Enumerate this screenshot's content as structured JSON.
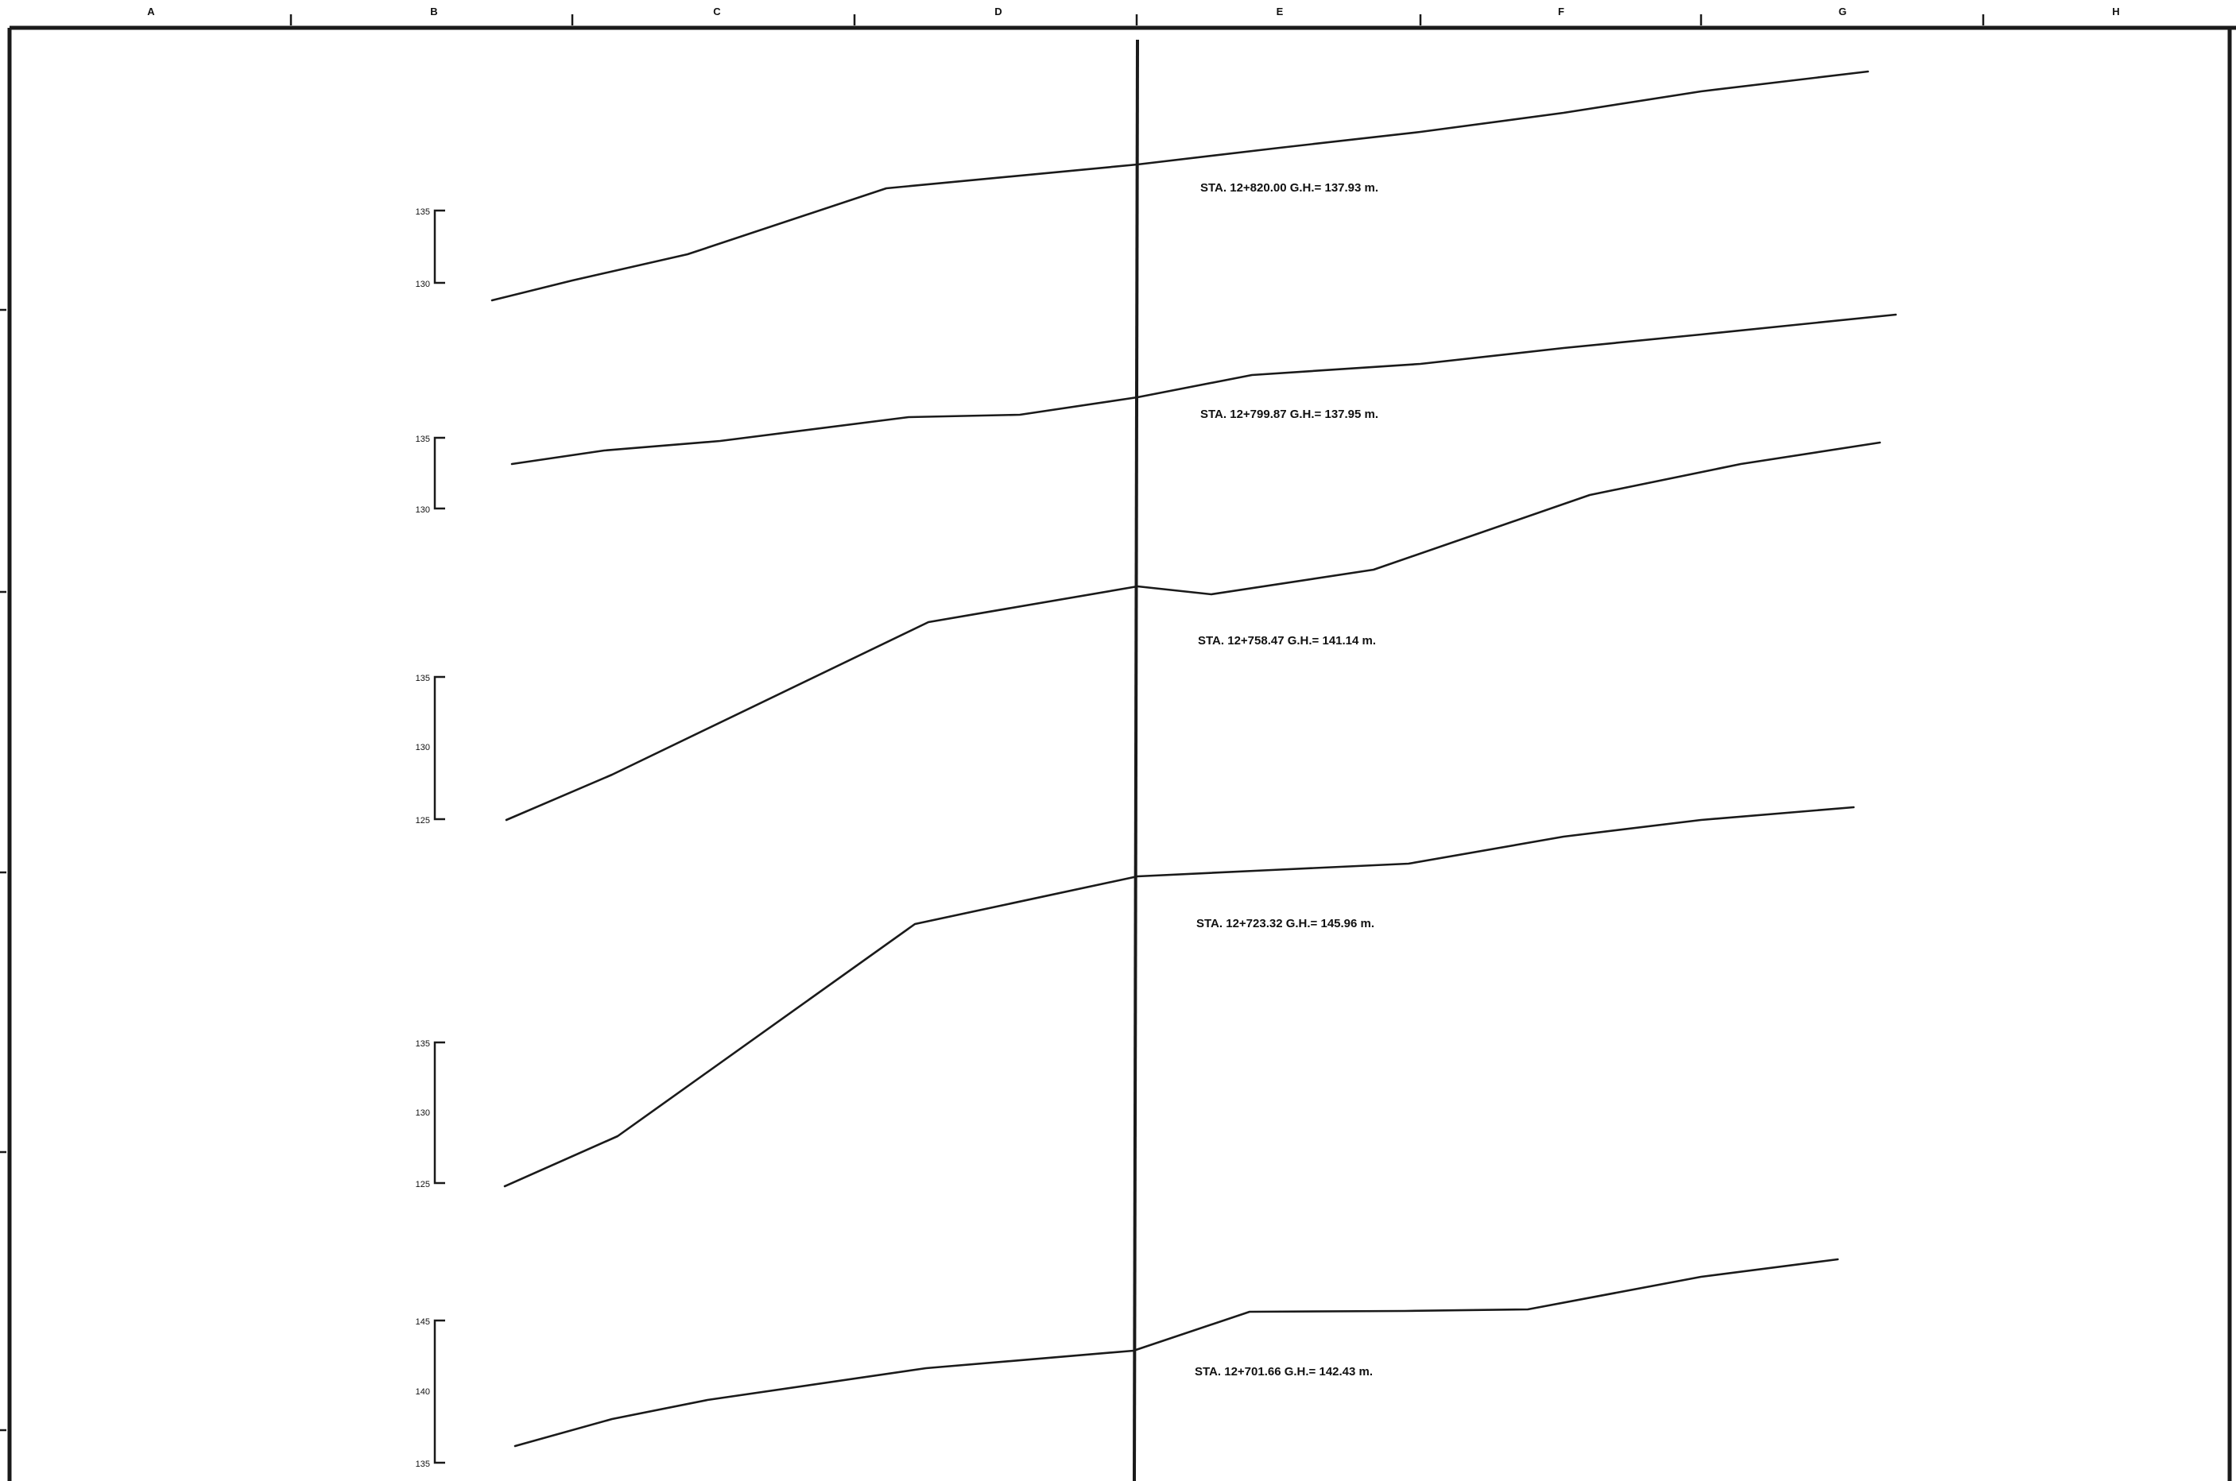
{
  "sheet": {
    "column_letters": [
      "A",
      "B",
      "C",
      "D",
      "E",
      "F",
      "G",
      "H"
    ]
  },
  "sections": [
    {
      "id": "sta-12-820",
      "label": "STA. 12+820.00  G.H.= 137.93 m.",
      "scale_labels": [
        "135",
        "130"
      ]
    },
    {
      "id": "sta-12-799",
      "label": "STA. 12+799.87  G.H.= 137.95 m.",
      "scale_labels": [
        "135",
        "130"
      ]
    },
    {
      "id": "sta-12-758",
      "label": "STA. 12+758.47  G.H.= 141.14 m.",
      "scale_labels": [
        "135",
        "130",
        "125"
      ]
    },
    {
      "id": "sta-12-723",
      "label": "STA. 12+723.32  G.H.= 145.96 m.",
      "scale_labels": [
        "135",
        "130",
        "125"
      ]
    },
    {
      "id": "sta-12-701",
      "label": "STA. 12+701.66  G.H.= 142.43 m.",
      "scale_labels": [
        "145",
        "140",
        "135"
      ]
    }
  ]
}
